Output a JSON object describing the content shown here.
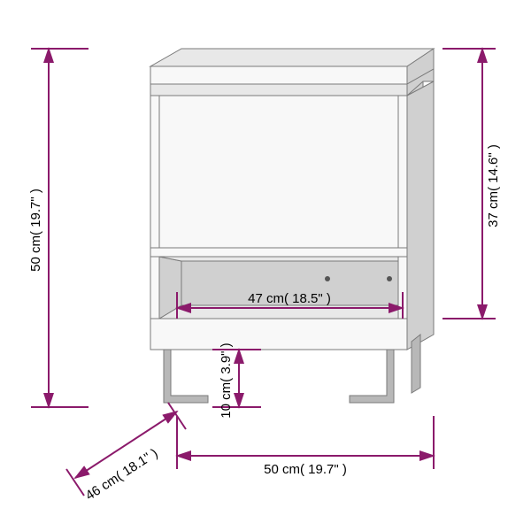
{
  "diagram": {
    "type": "technical-drawing",
    "object": "nightstand",
    "background_color": "#ffffff",
    "dimension_line_color": "#8b1a6b",
    "furniture_stroke_color": "#7a7a7a",
    "furniture_fill_light": "#f8f8f8",
    "furniture_fill_mid": "#e8e8e8",
    "furniture_fill_dark": "#d0d0d0",
    "leg_color": "#b8b8b8",
    "text_color": "#000000",
    "label_fontsize": 15,
    "dimensions": {
      "height": "50 cm( 19.7\" )",
      "drawer_height": "37 cm( 14.6\" )",
      "inner_width": "47 cm( 18.5\" )",
      "leg_height": "10 cm( 3.9\" )",
      "depth": "46 cm( 18.1\" )",
      "width": "50 cm( 19.7\" )"
    },
    "arrow_size": 8
  }
}
